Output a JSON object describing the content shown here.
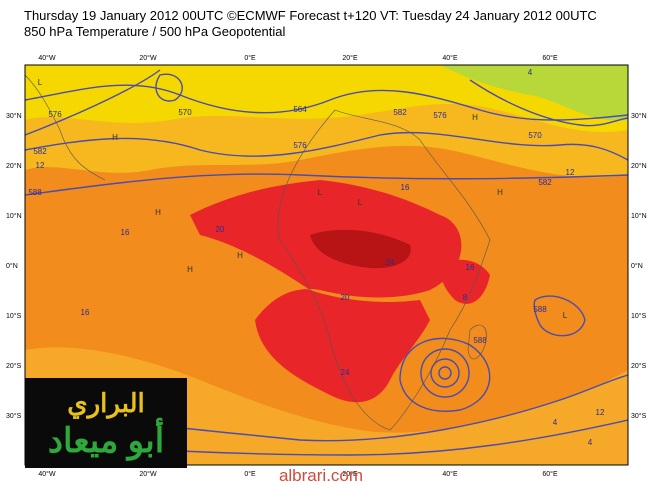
{
  "header": {
    "title": "Thursday 19 January 2012 00UTC ©ECMWF Forecast t+120 VT: Tuesday 24 January 2012 00UTC",
    "subtitle": "850 hPa Temperature / 500 hPa Geopotential"
  },
  "axes": {
    "longitudes": [
      "40°W",
      "20°W",
      "0°E",
      "20°E",
      "40°E",
      "60°E"
    ],
    "latitudes": [
      "30°N",
      "20°N",
      "10°N",
      "0°N",
      "10°S",
      "20°S",
      "30°S"
    ]
  },
  "map": {
    "contour_labels": [
      "576",
      "570",
      "564",
      "582",
      "576",
      "588",
      "12",
      "16",
      "20",
      "24",
      "16",
      "20",
      "24",
      "16",
      "8",
      "4",
      "582",
      "576",
      "570",
      "582",
      "12",
      "588",
      "16",
      "588",
      "12",
      "4",
      "4"
    ],
    "markers": [
      "H",
      "H",
      "H",
      "H",
      "L",
      "L",
      "L",
      "H",
      "L",
      "H"
    ]
  },
  "logo": {
    "top": "البراري",
    "bottom": "أبو ميعاد"
  },
  "footer": {
    "watermark": "albrari.com"
  }
}
